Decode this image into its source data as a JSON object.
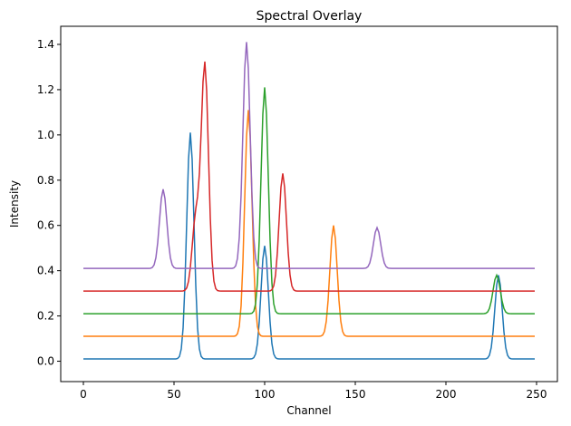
{
  "chart_data": {
    "type": "line",
    "title": "Spectral Overlay",
    "xlabel": "Channel",
    "ylabel": "Intensity",
    "xlim": [
      -12.5,
      261.5
    ],
    "ylim": [
      -0.09,
      1.48
    ],
    "xticks": [
      0,
      50,
      100,
      150,
      200,
      250
    ],
    "yticks": [
      0.0,
      0.2,
      0.4,
      0.6,
      0.8,
      1.0,
      1.2,
      1.4
    ],
    "ytick_labels": [
      "0.0",
      "0.2",
      "0.4",
      "0.6",
      "0.8",
      "1.0",
      "1.2",
      "1.4"
    ],
    "grid": false,
    "legend": "none",
    "x_range": [
      0,
      249
    ],
    "series": [
      {
        "color": "#1f77b4",
        "baseline": 0.01,
        "peaks": [
          {
            "center": 59,
            "height": 1.0,
            "width": 2.0
          },
          {
            "center": 100,
            "height": 0.5,
            "width": 2.0
          },
          {
            "center": 229,
            "height": 0.37,
            "width": 2.0
          }
        ]
      },
      {
        "color": "#ff7f0e",
        "baseline": 0.11,
        "peaks": [
          {
            "center": 91,
            "height": 1.0,
            "width": 2.0
          },
          {
            "center": 138,
            "height": 0.49,
            "width": 2.0
          }
        ]
      },
      {
        "color": "#2ca02c",
        "baseline": 0.21,
        "peaks": [
          {
            "center": 100,
            "height": 1.0,
            "width": 2.0
          },
          {
            "center": 228,
            "height": 0.17,
            "width": 2.0
          }
        ]
      },
      {
        "color": "#d62728",
        "baseline": 0.31,
        "peaks": [
          {
            "center": 67,
            "height": 1.0,
            "width": 2.0
          },
          {
            "center": 110,
            "height": 0.52,
            "width": 2.0
          },
          {
            "center": 62,
            "height": 0.32,
            "width": 2.0
          }
        ]
      },
      {
        "color": "#9467bd",
        "baseline": 0.41,
        "peaks": [
          {
            "center": 90,
            "height": 1.0,
            "width": 2.0
          },
          {
            "center": 44,
            "height": 0.35,
            "width": 2.0
          },
          {
            "center": 162,
            "height": 0.18,
            "width": 2.0
          }
        ]
      }
    ]
  }
}
